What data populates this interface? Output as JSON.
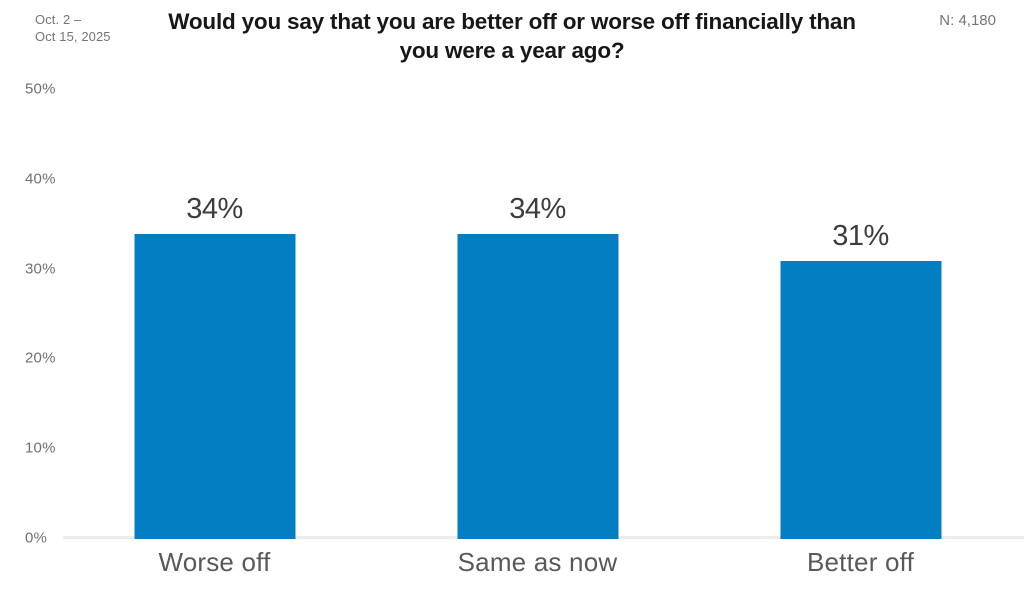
{
  "header": {
    "date_line1": "Oct. 2 –",
    "date_line2": "Oct 15, 2025",
    "title_line1": "Would you say that you are better off or worse off financially than",
    "title_line2": "you were a year ago?",
    "sample_size": "N: 4,180"
  },
  "chart_data": {
    "type": "bar",
    "title": "Would you say that you are better off or worse off financially than you were a year ago?",
    "date_range": "Oct. 2 – Oct 15, 2025",
    "sample_size": "N: 4,180",
    "categories": [
      "Worse off",
      "Same as now",
      "Better off"
    ],
    "values": [
      34,
      34,
      31
    ],
    "value_labels": [
      "34%",
      "34%",
      "31%"
    ],
    "xlabel": "",
    "ylabel": "",
    "ylim": [
      0,
      50
    ],
    "y_ticks": [
      0,
      10,
      20,
      30,
      40,
      50
    ],
    "y_tick_labels": [
      "0%",
      "10%",
      "20%",
      "30%",
      "40%",
      "50%"
    ],
    "grid": false,
    "legend": false,
    "bar_color": "#047ec2"
  },
  "colors": {
    "bar": "#047ec2",
    "title_text": "#171717",
    "muted_text": "#757575",
    "axis_text": "#6f6f6f",
    "value_text": "#3d3d3d",
    "category_text": "#595959",
    "baseline": "#ececec",
    "background": "#ffffff"
  }
}
